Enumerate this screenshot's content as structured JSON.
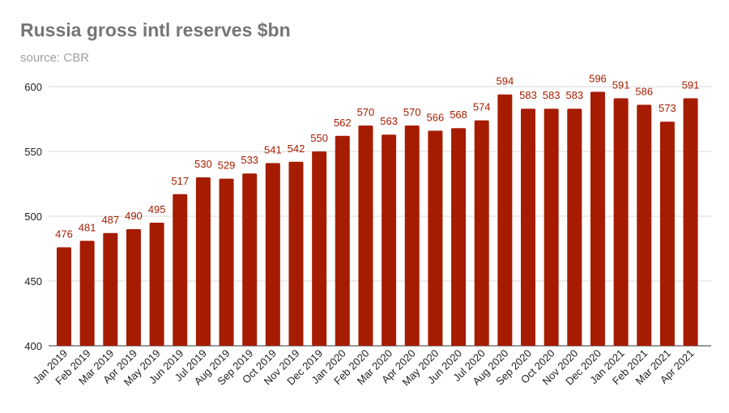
{
  "header": {
    "title": "Russia gross intl reserves $bn",
    "subtitle": "source: CBR"
  },
  "chart_data": {
    "type": "bar",
    "title": "Russia gross intl reserves $bn",
    "subtitle": "source: CBR",
    "xlabel": "",
    "ylabel": "",
    "ylim": [
      400,
      600
    ],
    "yticks": [
      400,
      450,
      500,
      550,
      600
    ],
    "grid": true,
    "bar_color": "#a61c00",
    "label_color": "#a61c00",
    "categories": [
      "Jan 2019",
      "Feb 2019",
      "Mar 2019",
      "Apr 2019",
      "May 2019",
      "Jun 2019",
      "Jul 2019",
      "Aug 2019",
      "Sep 2019",
      "Oct 2019",
      "Nov 2019",
      "Dec 2019",
      "Jan 2020",
      "Feb 2020",
      "Mar 2020",
      "Apr 2020",
      "May 2020",
      "Jun 2020",
      "Jul 2020",
      "Aug 2020",
      "Sep 2020",
      "Oct 2020",
      "Nov 2020",
      "Dec 2020",
      "Jan 2021",
      "Feb 2021",
      "Mar 2021",
      "Apr 2021"
    ],
    "values": [
      476,
      481,
      487,
      490,
      495,
      517,
      530,
      529,
      533,
      541,
      542,
      550,
      562,
      570,
      563,
      570,
      566,
      568,
      574,
      594,
      583,
      583,
      583,
      596,
      591,
      586,
      573,
      591
    ]
  }
}
